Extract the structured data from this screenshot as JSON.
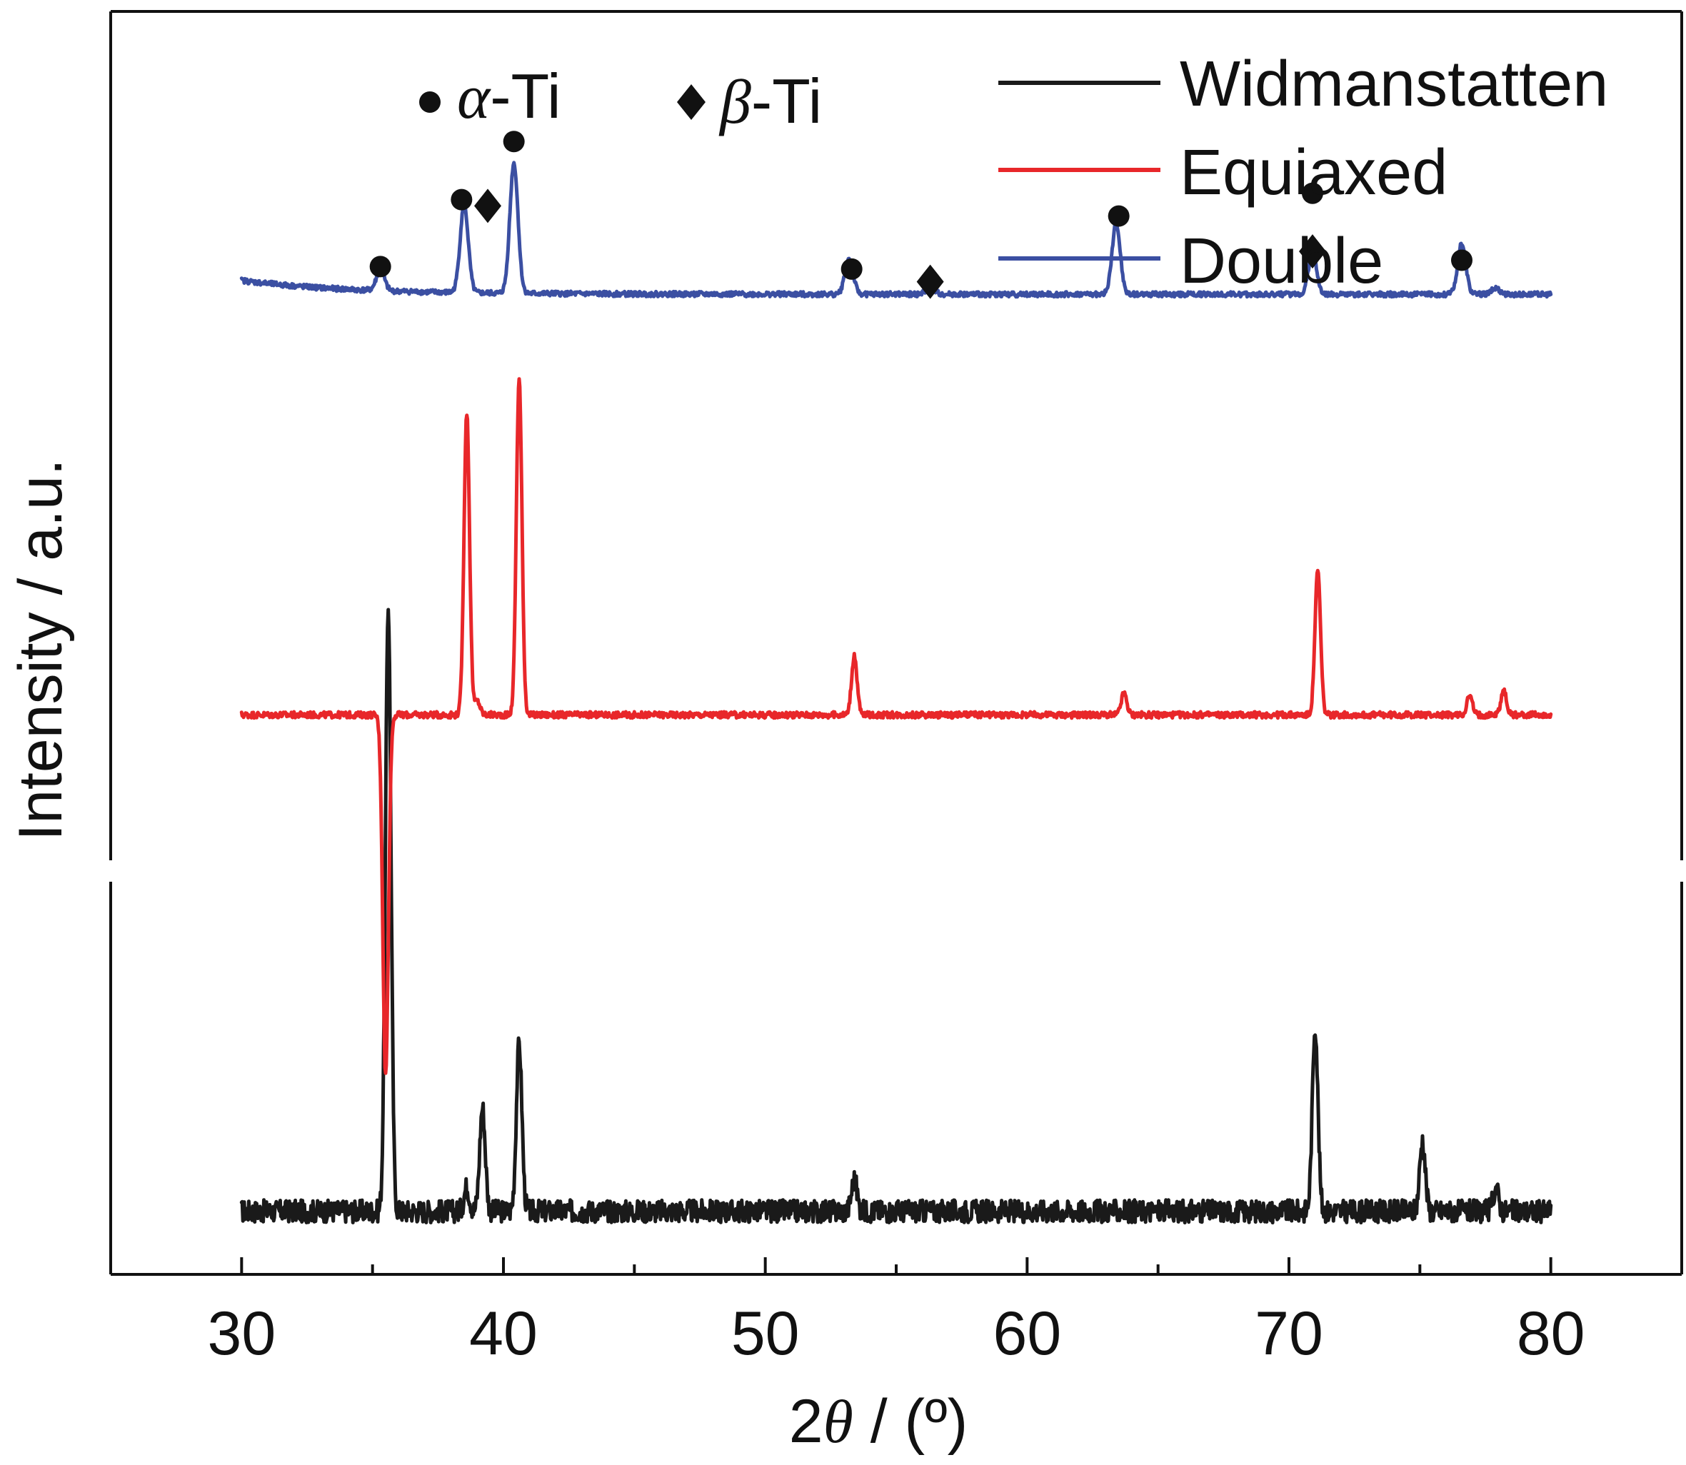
{
  "chart_data": {
    "type": "line",
    "xlabel_prefix": "2",
    "xlabel_symbol": "θ",
    "xlabel_suffix": " / (º)",
    "ylabel": "Intensity / a.u.",
    "xlim": [
      25,
      85
    ],
    "ylim": [
      0,
      100
    ],
    "x_ticks": [
      30,
      40,
      50,
      60,
      70,
      80
    ],
    "x_tick_labels": [
      "30",
      "40",
      "50",
      "60",
      "70",
      "80"
    ],
    "y_axis_break": true,
    "phase_legend": [
      {
        "marker": "circle",
        "greek": "α",
        "label": "-Ti"
      },
      {
        "marker": "diamond",
        "greek": "β",
        "label": "-Ti"
      }
    ],
    "series": [
      {
        "name": "Widmanstatten",
        "color": "#1a1a1a",
        "baseline": 5.0,
        "noise": 0.9,
        "peaks": [
          {
            "x": 35.6,
            "y": 53.0
          },
          {
            "x": 38.6,
            "y": 6.9
          },
          {
            "x": 39.2,
            "y": 13.2
          },
          {
            "x": 40.6,
            "y": 18.3
          },
          {
            "x": 53.4,
            "y": 7.5
          },
          {
            "x": 71.0,
            "y": 19.7
          },
          {
            "x": 75.1,
            "y": 10.6
          },
          {
            "x": 77.9,
            "y": 6.8
          }
        ]
      },
      {
        "name": "Equiaxed",
        "color": "#e8272a",
        "baseline": 44.3,
        "noise": 0.25,
        "peaks": [
          {
            "x": 35.5,
            "y": 15.8
          },
          {
            "x": 38.6,
            "y": 68.2
          },
          {
            "x": 39.0,
            "y": 45.4
          },
          {
            "x": 40.6,
            "y": 70.9
          },
          {
            "x": 53.4,
            "y": 48.9
          },
          {
            "x": 63.7,
            "y": 46.0
          },
          {
            "x": 71.1,
            "y": 55.7
          },
          {
            "x": 76.9,
            "y": 45.8
          },
          {
            "x": 78.2,
            "y": 46.2
          }
        ]
      },
      {
        "name": "Double",
        "color": "#3b4fa2",
        "baseline": 77.6,
        "noise": 0.2,
        "peaks": [
          {
            "x": 35.3,
            "y": 79.2
          },
          {
            "x": 38.5,
            "y": 84.5
          },
          {
            "x": 40.4,
            "y": 87.9
          },
          {
            "x": 53.2,
            "y": 80.4
          },
          {
            "x": 56.3,
            "y": 78.2
          },
          {
            "x": 63.4,
            "y": 83.2
          },
          {
            "x": 70.9,
            "y": 80.9
          },
          {
            "x": 76.6,
            "y": 81.6
          },
          {
            "x": 77.9,
            "y": 78.1
          }
        ]
      }
    ],
    "peak_markers": [
      {
        "x": 35.3,
        "y": 79.8,
        "marker": "circle"
      },
      {
        "x": 38.4,
        "y": 85.1,
        "marker": "circle"
      },
      {
        "x": 39.4,
        "y": 84.6,
        "marker": "diamond"
      },
      {
        "x": 40.4,
        "y": 89.7,
        "marker": "circle"
      },
      {
        "x": 53.3,
        "y": 79.6,
        "marker": "circle"
      },
      {
        "x": 56.3,
        "y": 78.6,
        "marker": "diamond"
      },
      {
        "x": 63.5,
        "y": 83.8,
        "marker": "circle"
      },
      {
        "x": 70.9,
        "y": 85.6,
        "marker": "circle"
      },
      {
        "x": 70.9,
        "y": 81.0,
        "marker": "diamond"
      },
      {
        "x": 76.6,
        "y": 80.3,
        "marker": "circle"
      }
    ]
  }
}
